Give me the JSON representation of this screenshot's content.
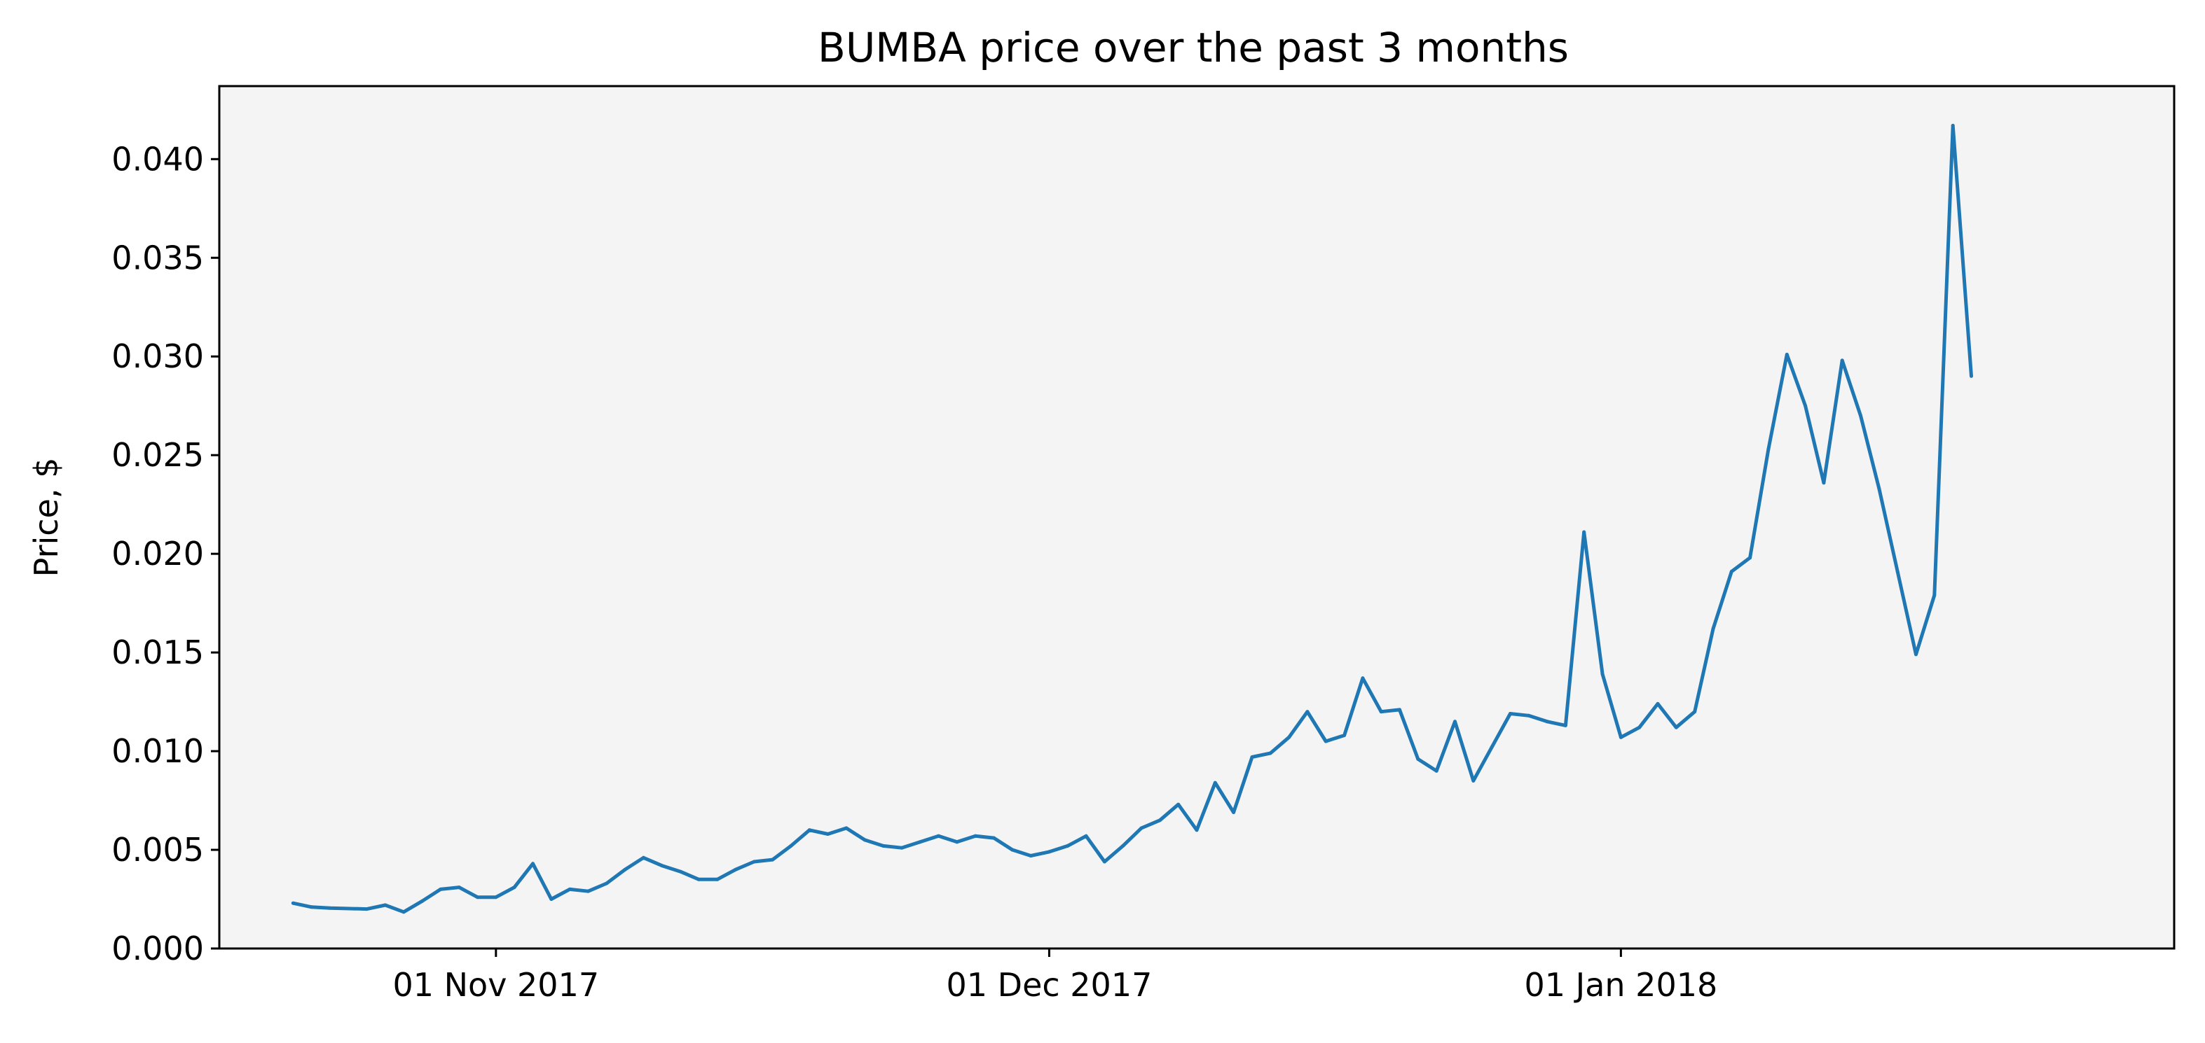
{
  "chart_data": {
    "type": "line",
    "title": "BUMBA price over the past 3 months",
    "xlabel": "",
    "ylabel": "Price, $",
    "x_type": "date",
    "xlim": [
      "2017-10-17",
      "2018-01-31"
    ],
    "ylim": [
      0.0,
      0.0437
    ],
    "x_ticks": [
      {
        "value": "2017-11-01",
        "label": "01 Nov 2017"
      },
      {
        "value": "2017-12-01",
        "label": "01 Dec 2017"
      },
      {
        "value": "2018-01-01",
        "label": "01 Jan 2018"
      }
    ],
    "y_ticks": [
      {
        "value": 0.0,
        "label": "0.000"
      },
      {
        "value": 0.005,
        "label": "0.005"
      },
      {
        "value": 0.01,
        "label": "0.010"
      },
      {
        "value": 0.015,
        "label": "0.015"
      },
      {
        "value": 0.02,
        "label": "0.020"
      },
      {
        "value": 0.025,
        "label": "0.025"
      },
      {
        "value": 0.03,
        "label": "0.030"
      },
      {
        "value": 0.035,
        "label": "0.035"
      },
      {
        "value": 0.04,
        "label": "0.040"
      }
    ],
    "grid": false,
    "legend": "none",
    "colors": {
      "line": "#1f77b4",
      "plot_background": "#f4f4f4",
      "axes": "#000000"
    },
    "series": [
      {
        "points": [
          [
            "2017-10-21",
            0.0023
          ],
          [
            "2017-10-22",
            0.0021
          ],
          [
            "2017-10-23",
            0.00205
          ],
          [
            "2017-10-25",
            0.002
          ],
          [
            "2017-10-26",
            0.0022
          ],
          [
            "2017-10-27",
            0.00185
          ],
          [
            "2017-10-28",
            0.0024
          ],
          [
            "2017-10-29",
            0.003
          ],
          [
            "2017-10-30",
            0.0031
          ],
          [
            "2017-10-31",
            0.0026
          ],
          [
            "2017-11-01",
            0.0026
          ],
          [
            "2017-11-02",
            0.0031
          ],
          [
            "2017-11-03",
            0.0043
          ],
          [
            "2017-11-04",
            0.0025
          ],
          [
            "2017-11-05",
            0.003
          ],
          [
            "2017-11-06",
            0.0029
          ],
          [
            "2017-11-07",
            0.0033
          ],
          [
            "2017-11-08",
            0.004
          ],
          [
            "2017-11-09",
            0.0046
          ],
          [
            "2017-11-10",
            0.0042
          ],
          [
            "2017-11-11",
            0.0039
          ],
          [
            "2017-11-12",
            0.0035
          ],
          [
            "2017-11-13",
            0.0035
          ],
          [
            "2017-11-14",
            0.004
          ],
          [
            "2017-11-15",
            0.0044
          ],
          [
            "2017-11-16",
            0.0045
          ],
          [
            "2017-11-17",
            0.0052
          ],
          [
            "2017-11-18",
            0.006
          ],
          [
            "2017-11-19",
            0.0058
          ],
          [
            "2017-11-20",
            0.0061
          ],
          [
            "2017-11-21",
            0.0055
          ],
          [
            "2017-11-22",
            0.0052
          ],
          [
            "2017-11-23",
            0.0051
          ],
          [
            "2017-11-24",
            0.0054
          ],
          [
            "2017-11-25",
            0.0057
          ],
          [
            "2017-11-26",
            0.0054
          ],
          [
            "2017-11-27",
            0.0057
          ],
          [
            "2017-11-28",
            0.0056
          ],
          [
            "2017-11-29",
            0.005
          ],
          [
            "2017-11-30",
            0.0047
          ],
          [
            "2017-12-01",
            0.0049
          ],
          [
            "2017-12-02",
            0.0052
          ],
          [
            "2017-12-03",
            0.0057
          ],
          [
            "2017-12-04",
            0.0044
          ],
          [
            "2017-12-05",
            0.0052
          ],
          [
            "2017-12-06",
            0.0061
          ],
          [
            "2017-12-07",
            0.0065
          ],
          [
            "2017-12-08",
            0.0073
          ],
          [
            "2017-12-09",
            0.006
          ],
          [
            "2017-12-10",
            0.0084
          ],
          [
            "2017-12-11",
            0.0069
          ],
          [
            "2017-12-12",
            0.0097
          ],
          [
            "2017-12-13",
            0.0099
          ],
          [
            "2017-12-14",
            0.0107
          ],
          [
            "2017-12-15",
            0.012
          ],
          [
            "2017-12-16",
            0.0105
          ],
          [
            "2017-12-17",
            0.0108
          ],
          [
            "2017-12-18",
            0.0137
          ],
          [
            "2017-12-19",
            0.012
          ],
          [
            "2017-12-20",
            0.0121
          ],
          [
            "2017-12-21",
            0.0096
          ],
          [
            "2017-12-22",
            0.009
          ],
          [
            "2017-12-23",
            0.0115
          ],
          [
            "2017-12-24",
            0.0085
          ],
          [
            "2017-12-25",
            0.0102
          ],
          [
            "2017-12-26",
            0.0119
          ],
          [
            "2017-12-27",
            0.0118
          ],
          [
            "2017-12-28",
            0.0115
          ],
          [
            "2017-12-29",
            0.0113
          ],
          [
            "2017-12-30",
            0.0211
          ],
          [
            "2017-12-31",
            0.0139
          ],
          [
            "2018-01-01",
            0.0107
          ],
          [
            "2018-01-02",
            0.0112
          ],
          [
            "2018-01-03",
            0.0124
          ],
          [
            "2018-01-04",
            0.0112
          ],
          [
            "2018-01-05",
            0.012
          ],
          [
            "2018-01-06",
            0.0162
          ],
          [
            "2018-01-07",
            0.0191
          ],
          [
            "2018-01-08",
            0.0198
          ],
          [
            "2018-01-09",
            0.0253
          ],
          [
            "2018-01-10",
            0.0301
          ],
          [
            "2018-01-11",
            0.0275
          ],
          [
            "2018-01-12",
            0.0236
          ],
          [
            "2018-01-13",
            0.0298
          ],
          [
            "2018-01-14",
            0.027
          ],
          [
            "2018-01-15",
            0.0233
          ],
          [
            "2018-01-16",
            0.0191
          ],
          [
            "2018-01-17",
            0.0149
          ],
          [
            "2018-01-18",
            0.0179
          ],
          [
            "2018-01-19",
            0.0417
          ],
          [
            "2018-01-20",
            0.029
          ]
        ]
      }
    ]
  }
}
